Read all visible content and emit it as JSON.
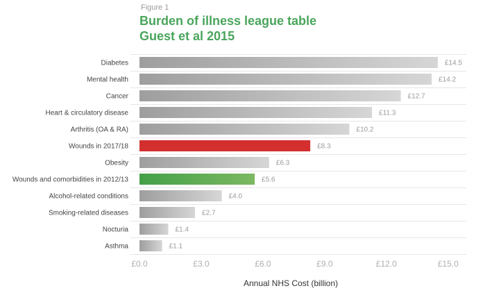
{
  "figure_label": "Figure 1",
  "title_line1": "Burden of illness league table",
  "title_line2": "Guest et al 2015",
  "colors": {
    "title": "#4aa55c",
    "default_bar_start": "#9e9e9e",
    "default_bar_end": "#d6d6d6",
    "highlight_red": "#d32f2f",
    "highlight_green_start": "#43a047",
    "highlight_green_end": "#7cb862"
  },
  "chart_data": {
    "type": "bar",
    "orientation": "horizontal",
    "title": "Burden of illness league table Guest et al 2015",
    "xlabel": "Annual NHS Cost (billion)",
    "ylabel": "",
    "xlim": [
      0,
      15
    ],
    "grid": "horizontal row separators",
    "currency_prefix": "£",
    "x_ticks": [
      0,
      3,
      6,
      9,
      12,
      15
    ],
    "x_tick_labels": [
      "£0.0",
      "£3.0",
      "£6.0",
      "£9.0",
      "£12.0",
      "£15.0"
    ],
    "categories": [
      "Diabetes",
      "Mental health",
      "Cancer",
      "Heart & circulatory disease",
      "Arthritis (OA & RA)",
      "Wounds in 2017/18",
      "Obesity",
      "Wounds and comorbidities in 2012/13",
      "Alcohol-related conditions",
      "Smoking-related diseases",
      "Nocturia",
      "Asthma"
    ],
    "values": [
      14.5,
      14.2,
      12.7,
      11.3,
      10.2,
      8.3,
      6.3,
      5.6,
      4.0,
      2.7,
      1.4,
      1.1
    ],
    "value_labels": [
      "£14.5",
      "£14.2",
      "£12.7",
      "£11.3",
      "£10.2",
      "£8.3",
      "£6.3",
      "£5.6",
      "£4.0",
      "£2.7",
      "£1.4",
      "£1.1"
    ],
    "highlights": {
      "Wounds in 2017/18": "red",
      "Wounds and comorbidities in 2012/13": "green"
    }
  }
}
